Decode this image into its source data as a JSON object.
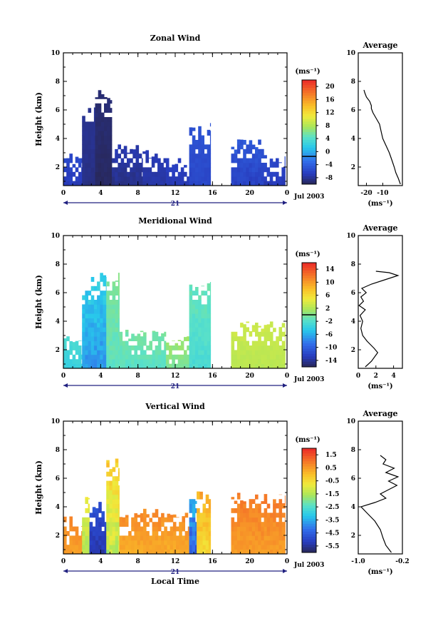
{
  "chart_data": [
    {
      "type": "heatmap",
      "title": "Zonal Wind",
      "ylabel": "Height (km)",
      "xlabel": "",
      "xlim": [
        0,
        24
      ],
      "ylim": [
        0.7,
        10
      ],
      "x_ticks": [
        "0",
        "4",
        "8",
        "12",
        "16",
        "20",
        "0"
      ],
      "y_ticks": [
        "2",
        "4",
        "6",
        "8",
        "10"
      ],
      "date_label": "21",
      "month_label": "Jul 2003",
      "colorbar": {
        "unit": "(ms⁻¹)",
        "range": [
          -8,
          22
        ],
        "ticks": [
          "20",
          "16",
          "12",
          "8",
          "4",
          "0",
          "-4",
          "-8"
        ],
        "zero_line": 0
      },
      "data_columns": [
        {
          "x0": 0.0,
          "x1": 2.0,
          "top": 3.0,
          "v_low": -5.5,
          "v_high": -3.5
        },
        {
          "x0": 2.0,
          "x1": 3.4,
          "top": 6.2,
          "v_low": -7.0,
          "v_high": -6.0
        },
        {
          "x0": 3.4,
          "x1": 5.2,
          "top": 7.4,
          "v_low": -8.0,
          "v_high": -7.0
        },
        {
          "x0": 5.2,
          "x1": 8.5,
          "top": 3.6,
          "v_low": -7.0,
          "v_high": -5.0
        },
        {
          "x0": 8.5,
          "x1": 11.0,
          "top": 3.2,
          "v_low": -6.0,
          "v_high": -5.0
        },
        {
          "x0": 11.0,
          "x1": 13.5,
          "top": 2.8,
          "v_low": -5.5,
          "v_high": -4.5
        },
        {
          "x0": 13.5,
          "x1": 15.8,
          "top": 5.1,
          "v_low": -4.5,
          "v_high": -3.0
        },
        {
          "x0": 18.0,
          "x1": 21.5,
          "top": 4.0,
          "v_low": -5.0,
          "v_high": -2.5
        },
        {
          "x0": 21.5,
          "x1": 23.8,
          "top": 3.0,
          "v_low": -5.5,
          "v_high": -3.5
        }
      ]
    },
    {
      "type": "line",
      "title": "Average",
      "xlabel": "(ms⁻¹)",
      "ylabel": "",
      "xlim": [
        -25,
        2
      ],
      "ylim": [
        0.7,
        10
      ],
      "x_ticks": [
        "-20",
        "-10"
      ],
      "y_ticks": [
        "2",
        "4",
        "6",
        "8",
        "10"
      ],
      "series": [
        {
          "x": [
            0.8,
            -0.5,
            -2,
            -3,
            -4.5,
            -6,
            -8,
            -10,
            -11,
            -12,
            -14,
            -16,
            -17,
            -17,
            -18,
            -20,
            -21,
            -21.5
          ],
          "y": [
            0.8,
            1.2,
            1.6,
            2.0,
            2.5,
            3.0,
            3.5,
            4.0,
            4.5,
            5.0,
            5.4,
            5.8,
            6.1,
            6.3,
            6.6,
            6.9,
            7.2,
            7.4
          ]
        }
      ]
    },
    {
      "type": "heatmap",
      "title": "Meridional Wind",
      "ylabel": "Height (km)",
      "xlabel": "",
      "xlim": [
        0,
        24
      ],
      "ylim": [
        0.7,
        10
      ],
      "x_ticks": [
        "0",
        "4",
        "8",
        "12",
        "16",
        "20",
        "0"
      ],
      "y_ticks": [
        "2",
        "4",
        "6",
        "8",
        "10"
      ],
      "date_label": "21",
      "month_label": "Jul 2003",
      "colorbar": {
        "unit": "(ms⁻¹)",
        "range": [
          -16,
          16
        ],
        "ticks": [
          "14",
          "10",
          "6",
          "2",
          "-2",
          "-6",
          "-10",
          "-14"
        ],
        "zero_line": 0
      },
      "data_columns": [
        {
          "x0": 0.0,
          "x1": 2.0,
          "top": 3.0,
          "v_low": -4.0,
          "v_high": -2.0
        },
        {
          "x0": 2.0,
          "x1": 4.6,
          "top": 7.4,
          "v_low": -8.0,
          "v_high": -3.0
        },
        {
          "x0": 4.6,
          "x1": 6.0,
          "top": 7.4,
          "v_low": -2.0,
          "v_high": 0.5
        },
        {
          "x0": 6.0,
          "x1": 11.0,
          "top": 3.4,
          "v_low": -2.0,
          "v_high": 0.0
        },
        {
          "x0": 11.0,
          "x1": 13.5,
          "top": 3.0,
          "v_low": -0.5,
          "v_high": 1.5
        },
        {
          "x0": 13.5,
          "x1": 15.8,
          "top": 6.8,
          "v_low": -3.0,
          "v_high": -0.5
        },
        {
          "x0": 18.0,
          "x1": 23.8,
          "top": 4.0,
          "v_low": 2.0,
          "v_high": 3.5
        }
      ]
    },
    {
      "type": "line",
      "title": "Average",
      "xlabel": "(ms⁻¹)",
      "ylabel": "",
      "xlim": [
        0,
        5
      ],
      "ylim": [
        0.7,
        10
      ],
      "x_ticks": [
        "0",
        "2",
        "4"
      ],
      "y_ticks": [
        "2",
        "4",
        "6",
        "8",
        "10"
      ],
      "series": [
        {
          "x": [
            0.8,
            1.5,
            2.2,
            1.8,
            1.0,
            0.5,
            0.3,
            0.5,
            0.2,
            0.8,
            0.1,
            0.6,
            0.3,
            0.9,
            0.4,
            1.5,
            3.0,
            4.5,
            3.5,
            2.0
          ],
          "y": [
            0.8,
            1.2,
            1.8,
            2.1,
            2.6,
            3.0,
            3.5,
            4.0,
            4.4,
            4.8,
            5.1,
            5.4,
            5.7,
            6.0,
            6.3,
            6.6,
            6.9,
            7.2,
            7.4,
            7.5
          ]
        }
      ]
    },
    {
      "type": "heatmap",
      "title": "Vertical Wind",
      "ylabel": "Height (km)",
      "xlabel": "Local Time",
      "xlim": [
        0,
        24
      ],
      "ylim": [
        0.7,
        10
      ],
      "x_ticks": [
        "0",
        "4",
        "8",
        "12",
        "16",
        "20",
        "0"
      ],
      "y_ticks": [
        "2",
        "4",
        "6",
        "8",
        "10"
      ],
      "date_label": "21",
      "month_label": "Jul 2003",
      "colorbar": {
        "unit": "(ms⁻¹)",
        "range": [
          -6.5,
          2.0
        ],
        "ticks": [
          "1.5",
          "0.5",
          "-0.5",
          "-1.5",
          "-2.5",
          "-3.5",
          "-4.5",
          "-5.5"
        ],
        "zero_line": null
      },
      "data_columns": [
        {
          "x0": 0.0,
          "x1": 2.0,
          "top": 3.4,
          "v_low": 0.2,
          "v_high": 0.8
        },
        {
          "x0": 2.0,
          "x1": 2.8,
          "top": 5.0,
          "v_low": -2.0,
          "v_high": -0.8
        },
        {
          "x0": 2.8,
          "x1": 4.6,
          "top": 4.4,
          "v_low": -6.0,
          "v_high": -5.0
        },
        {
          "x0": 4.6,
          "x1": 6.0,
          "top": 7.4,
          "v_low": -2.0,
          "v_high": 0.0
        },
        {
          "x0": 6.0,
          "x1": 13.5,
          "top": 4.0,
          "v_low": 0.0,
          "v_high": 0.8
        },
        {
          "x0": 13.5,
          "x1": 14.3,
          "top": 5.2,
          "v_low": -5.5,
          "v_high": -3.0
        },
        {
          "x0": 14.3,
          "x1": 15.8,
          "top": 5.4,
          "v_low": -1.0,
          "v_high": 0.5
        },
        {
          "x0": 18.0,
          "x1": 23.8,
          "top": 5.0,
          "v_low": 0.2,
          "v_high": 1.0
        }
      ]
    },
    {
      "type": "line",
      "title": "Average",
      "xlabel": "(ms⁻¹)",
      "ylabel": "",
      "xlim": [
        -1.0,
        -0.2
      ],
      "ylim": [
        0.7,
        10
      ],
      "x_ticks": [
        "-1.0",
        "-0.2"
      ],
      "y_ticks": [
        "2",
        "4",
        "6",
        "8",
        "10"
      ],
      "series": [
        {
          "x": [
            -0.4,
            -0.5,
            -0.55,
            -0.6,
            -0.7,
            -0.85,
            -0.95,
            -0.7,
            -0.5,
            -0.6,
            -0.45,
            -0.3,
            -0.45,
            -0.28,
            -0.5,
            -0.35,
            -0.55,
            -0.5,
            -0.6
          ],
          "y": [
            0.8,
            1.3,
            1.8,
            2.4,
            3.0,
            3.6,
            4.0,
            4.3,
            4.6,
            4.9,
            5.2,
            5.5,
            5.8,
            6.1,
            6.4,
            6.7,
            7.0,
            7.3,
            7.6
          ]
        }
      ]
    }
  ]
}
